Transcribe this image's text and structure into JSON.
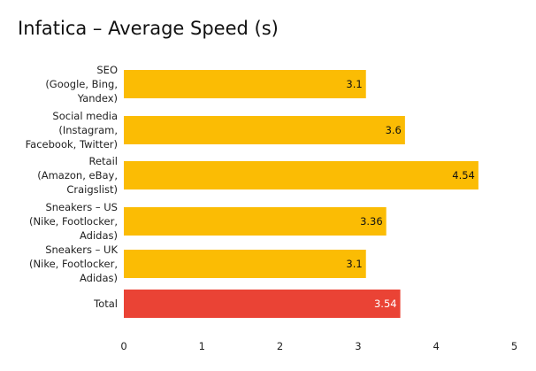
{
  "chart_data": {
    "type": "bar",
    "orientation": "horizontal",
    "title": "Infatica – Average Speed (s)",
    "xlabel": "",
    "ylabel": "",
    "xlim": [
      0,
      5
    ],
    "ticks": [
      "0",
      "1",
      "2",
      "3",
      "4",
      "5"
    ],
    "grid": false,
    "legend": "none",
    "categories": [
      [
        "SEO",
        "(Google, Bing,",
        "Yandex)"
      ],
      [
        "Social media",
        "(Instagram,",
        "Facebook, Twitter)"
      ],
      [
        "Retail",
        "(Amazon, eBay,",
        "Craigslist)"
      ],
      [
        "Sneakers – US",
        "(Nike, Footlocker,",
        "Adidas)"
      ],
      [
        "Sneakers – UK",
        "(Nike, Footlocker,",
        "Adidas)"
      ],
      [
        "Total"
      ]
    ],
    "values": [
      3.1,
      3.6,
      4.54,
      3.36,
      3.1,
      3.54
    ],
    "value_labels": [
      "3.1",
      "3.6",
      "4.54",
      "3.36",
      "3.1",
      "3.54"
    ],
    "colors": [
      "#FBBC04",
      "#FBBC04",
      "#FBBC04",
      "#FBBC04",
      "#FBBC04",
      "#EA4335"
    ],
    "label_colors": [
      "#111111",
      "#111111",
      "#111111",
      "#111111",
      "#111111",
      "#ffffff"
    ]
  }
}
